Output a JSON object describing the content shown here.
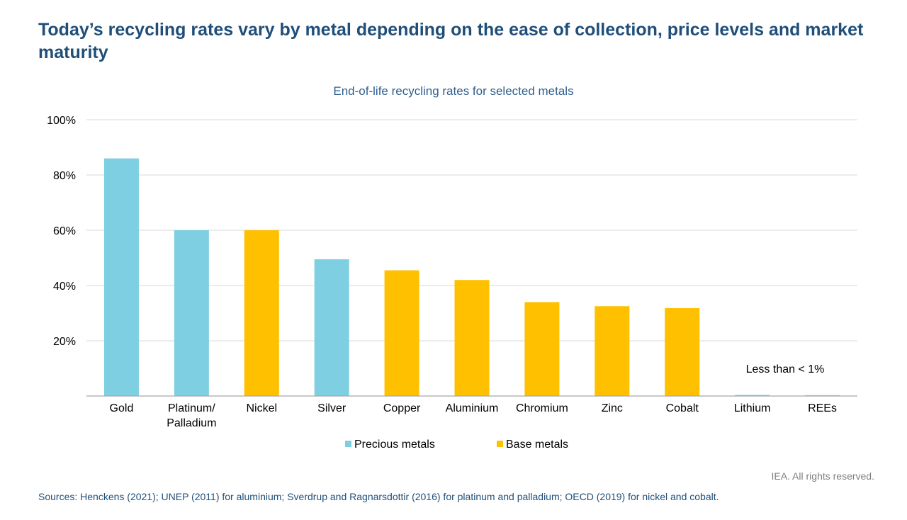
{
  "title": "Today’s recycling rates vary by metal depending on the ease of collection, price levels and market maturity",
  "chart_data": {
    "type": "bar",
    "title": "End-of-life recycling rates for selected metals",
    "categories": [
      "Gold",
      "Platinum/ Palladium",
      "Nickel",
      "Silver",
      "Copper",
      "Aluminium",
      "Chromium",
      "Zinc",
      "Cobalt",
      "Lithium",
      "REEs"
    ],
    "values": [
      86,
      60,
      60,
      49.5,
      45.5,
      42,
      34,
      32.5,
      31.8,
      0.4,
      0.2
    ],
    "groups": [
      "Precious metals",
      "Precious metals",
      "Base metals",
      "Precious metals",
      "Base metals",
      "Base metals",
      "Base metals",
      "Base metals",
      "Base metals",
      "Precious metals",
      "Precious metals"
    ],
    "legend": [
      {
        "name": "Precious metals",
        "color": "#7fcfe3"
      },
      {
        "name": "Base metals",
        "color": "#ffc000"
      }
    ],
    "ylim": [
      0,
      100
    ],
    "yticks": [
      20,
      40,
      60,
      80,
      100
    ],
    "ytick_labels": [
      "20%",
      "40%",
      "60%",
      "80%",
      "100%"
    ],
    "annotation": "Less than < 1%",
    "legend_position": "bottom",
    "grid": true
  },
  "footer": {
    "rights": "IEA. All rights reserved.",
    "sources": "Sources: Henckens (2021); UNEP (2011) for aluminium; Sverdrup and Ragnarsdottir (2016) for platinum and palladium; OECD (2019) for nickel and cobalt."
  }
}
